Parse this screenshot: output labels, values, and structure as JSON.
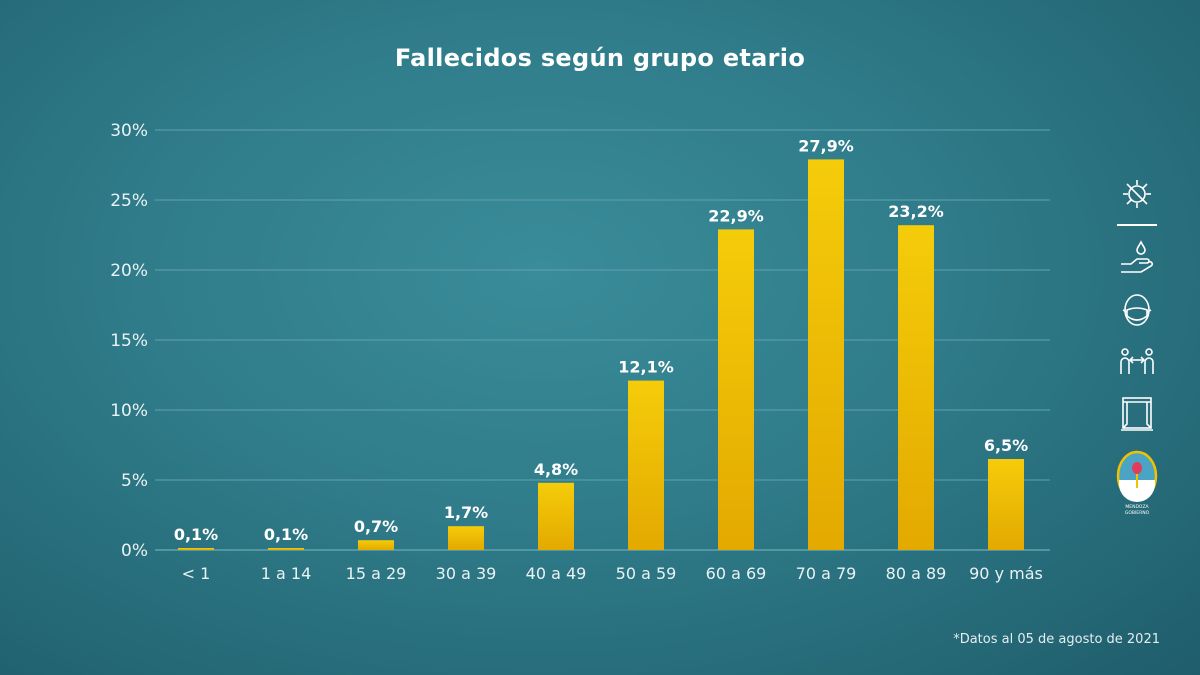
{
  "title": "Fallecidos según grupo etario",
  "footnote": "*Datos al 05 de agosto de 2021",
  "colors": {
    "bar": "#f2c200",
    "bar_dark": "#e0a800",
    "grid": "#5fa3ae",
    "text": "#ffffff"
  },
  "sidebar": {
    "icons": [
      "virus-icon",
      "hand-wash-icon",
      "face-mask-icon",
      "social-distance-icon",
      "window-ventilation-icon"
    ],
    "logo_text": "MENDOZA GOBIERNO"
  },
  "chart_data": {
    "type": "bar",
    "title": "Fallecidos según grupo etario",
    "categories": [
      "< 1",
      "1 a 14",
      "15 a 29",
      "30 a 39",
      "40 a 49",
      "50 a 59",
      "60 a 69",
      "70 a 79",
      "80 a 89",
      "90 y más"
    ],
    "values": [
      0.1,
      0.1,
      0.7,
      1.7,
      4.8,
      12.1,
      22.9,
      27.9,
      23.2,
      6.5
    ],
    "value_labels": [
      "0,1%",
      "0,1%",
      "0,7%",
      "1,7%",
      "4,8%",
      "12,1%",
      "22,9%",
      "27,9%",
      "23,2%",
      "6,5%"
    ],
    "yticks": [
      "0%",
      "5%",
      "10%",
      "15%",
      "20%",
      "25%",
      "30%"
    ],
    "ylim": [
      0,
      30
    ],
    "xlabel": "",
    "ylabel": "",
    "grid": true
  }
}
